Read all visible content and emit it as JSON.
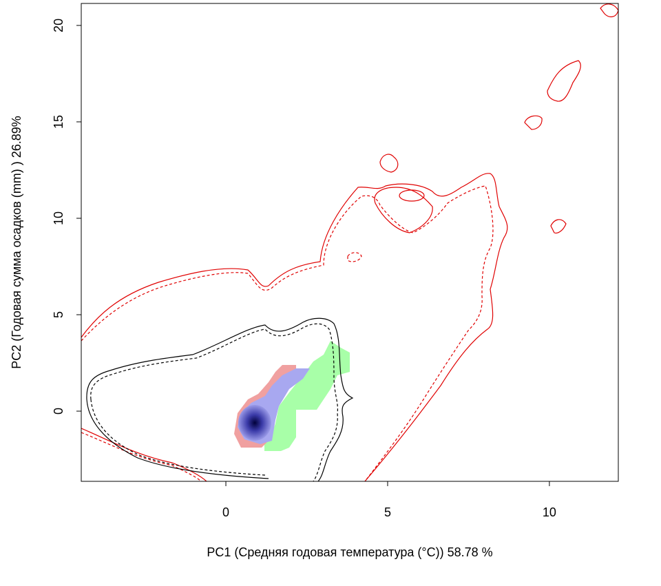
{
  "chart_data": {
    "type": "contour",
    "xlabel": "PC1 (Средняя годовая температура (°C)) 58.78 %",
    "ylabel": "PC2 (Годовая сумма осадков  (mm) ) 26.89%",
    "xlim": [
      -4.47,
      12.13
    ],
    "ylim": [
      -3.64,
      21.14
    ],
    "xticks": [
      0,
      5,
      10
    ],
    "yticks": [
      0,
      5,
      10,
      15,
      20
    ]
  }
}
